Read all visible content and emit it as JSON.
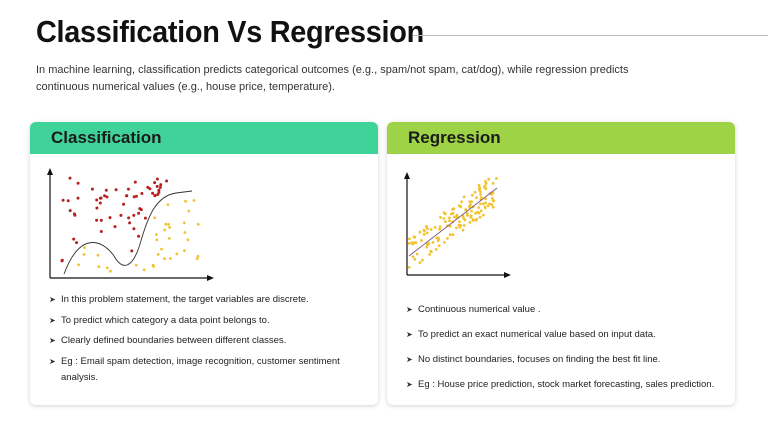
{
  "header": {
    "title": "Classification Vs Regression",
    "subtitle": "In machine learning, classification predicts categorical outcomes (e.g., spam/not spam, cat/dog), while regression predicts continuous numerical values (e.g., house price, temperature)."
  },
  "classification": {
    "heading": "Classification",
    "header_color": "#3fd39a",
    "class_a_color": "#b51f1f",
    "class_b_color": "#f2c230",
    "bullets": [
      "In this problem statement, the target variables are discrete.",
      "To predict which category a data point belongs to.",
      "Clearly defined boundaries between different classes.",
      "Eg : Email spam detection, image recognition, customer sentiment analysis."
    ]
  },
  "regression": {
    "heading": "Regression",
    "header_color": "#9ed347",
    "point_color": "#f2c230",
    "bullets": [
      "Continuous numerical value .",
      "To predict an exact numerical value based on input data.",
      "No distinct boundaries, focuses on finding the best fit line.",
      "Eg : House price prediction, stock market forecasting, sales prediction."
    ]
  }
}
